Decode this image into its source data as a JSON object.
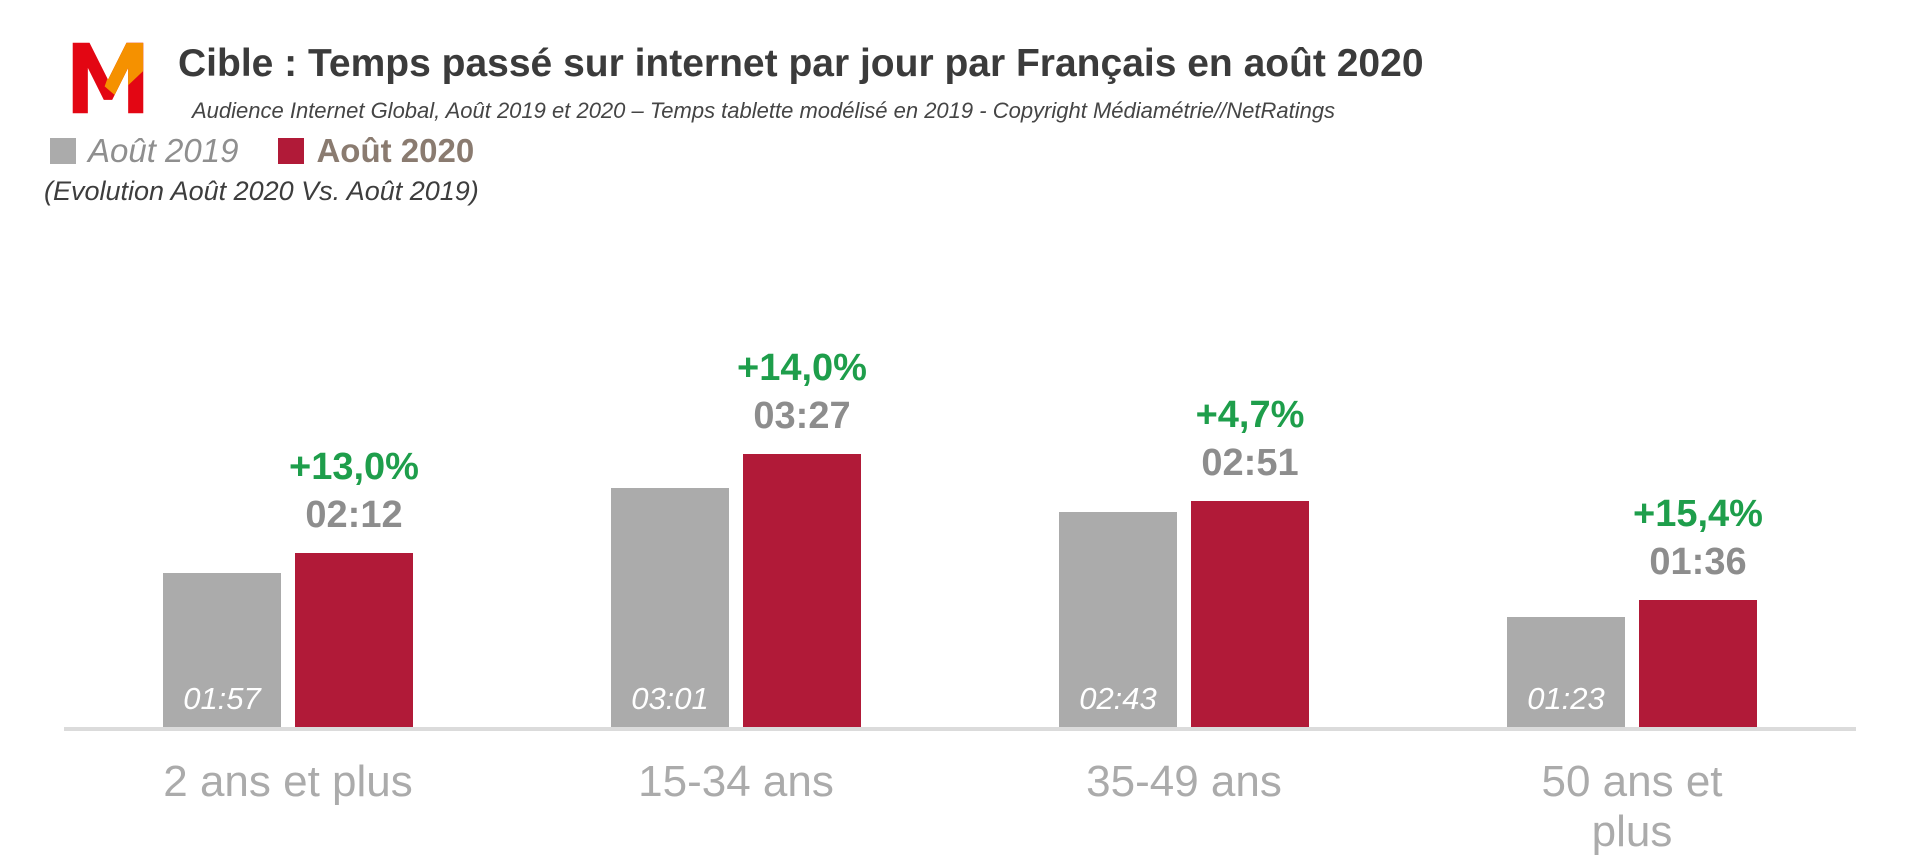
{
  "header": {
    "title": "Cible : Temps passé sur internet par jour par Français en août 2020",
    "subtitle": "Audience Internet Global, Août 2019 et 2020 – Temps tablette modélisé en 2019 - Copyright Médiamétrie//NetRatings",
    "logo_alt": "Médiamétrie"
  },
  "legend": {
    "items": [
      {
        "label": "Août 2019",
        "color": "#ABABAB",
        "label_color": "#8F8F8F",
        "bold": false,
        "italic": true
      },
      {
        "label": "Août 2020",
        "color": "#B11A38",
        "label_color": "#8A7B70",
        "bold": true,
        "italic": false
      }
    ],
    "note": "(Evolution Août 2020 Vs. Août 2019)"
  },
  "chart_data": {
    "type": "bar",
    "title": "Cible : Temps passé sur internet par jour par Français en août 2020",
    "categories": [
      "2 ans et plus",
      "15-34 ans",
      "35-49 ans",
      "50 ans et plus"
    ],
    "series": [
      {
        "name": "Août 2019",
        "color": "#ABABAB",
        "unit": "hh:mm per day",
        "labels": [
          "01:57",
          "03:01",
          "02:43",
          "01:23"
        ],
        "values_minutes": [
          117,
          181,
          163,
          83
        ]
      },
      {
        "name": "Août 2020",
        "color": "#B11A38",
        "unit": "hh:mm per day",
        "labels": [
          "02:12",
          "03:27",
          "02:51",
          "01:36"
        ],
        "values_minutes": [
          132,
          207,
          171,
          96
        ]
      }
    ],
    "evolution_labels": [
      "+13,0%",
      "+14,0%",
      "+4,7%",
      "+15,4%"
    ],
    "evolution_color": "#1E9E4B",
    "value_label_color": "#8D8D8D",
    "inbar_label_color": "#FFFFFF",
    "baseline_color": "#DBDBDB",
    "grid": false,
    "legend_position": "top-left",
    "xlabel": "",
    "ylabel": ""
  },
  "colors": {
    "title_text": "#3B3B3B",
    "category_label": "#ABABAB",
    "logo_red": "#E30613",
    "logo_orange": "#F59100"
  }
}
